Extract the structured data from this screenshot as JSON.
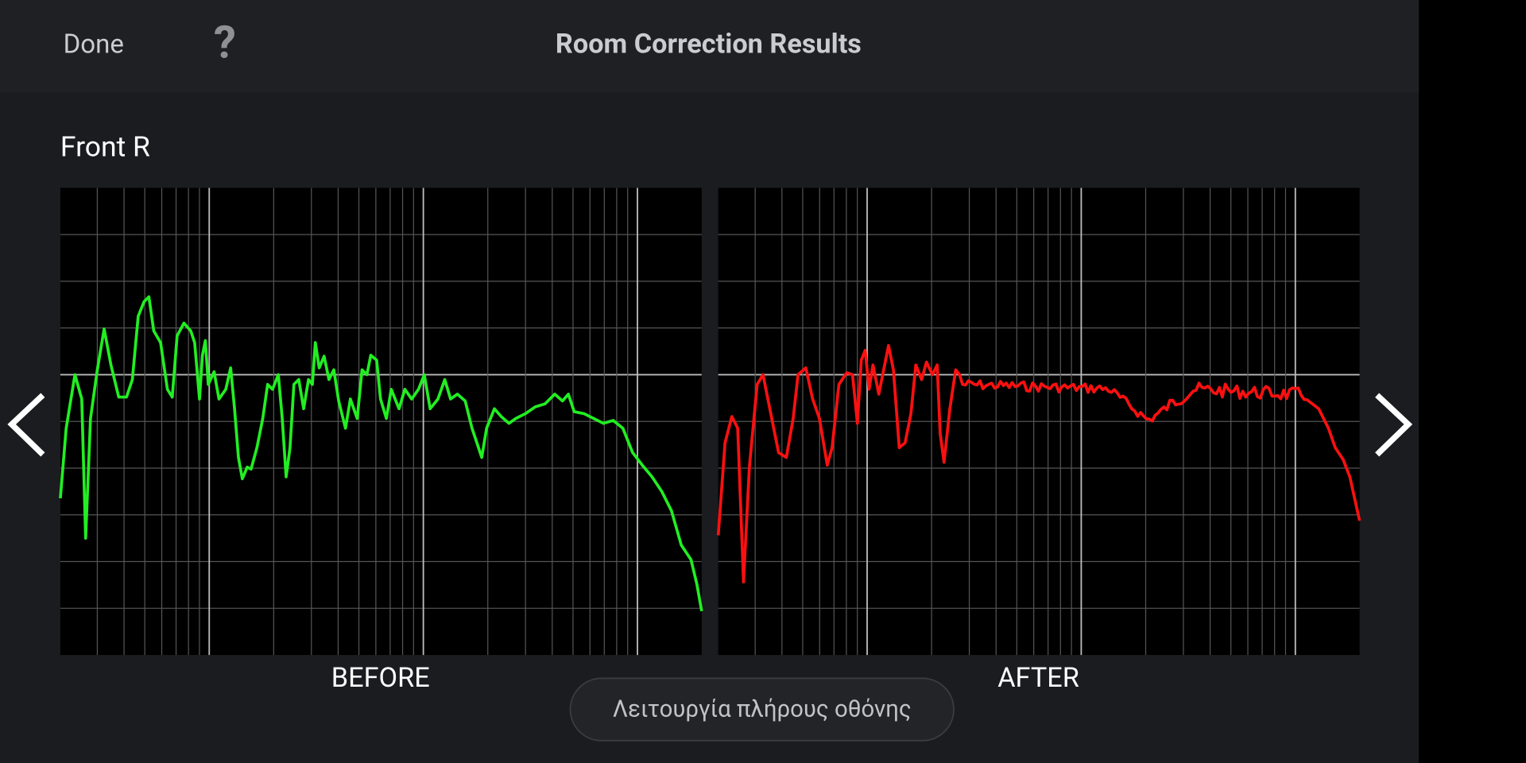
{
  "header": {
    "done": "Done",
    "help": "?",
    "title": "Room Correction Results"
  },
  "channel": "Front R",
  "charts": {
    "before": "BEFORE",
    "after": "AFTER"
  },
  "fullscreen_button": "Λειτουργία πλήρους οθόνης"
}
